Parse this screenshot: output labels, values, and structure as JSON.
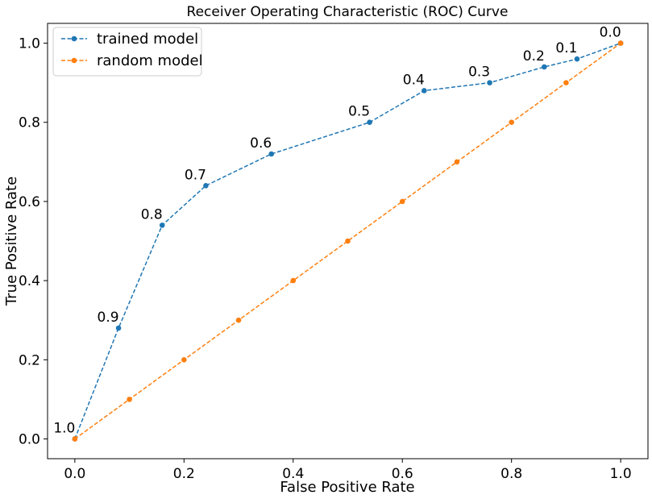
{
  "chart_data": {
    "type": "line",
    "title": "Receiver Operating Characteristic (ROC) Curve",
    "xlabel": "False Positive Rate",
    "ylabel": "True Positive Rate",
    "xlim": [
      -0.05,
      1.05
    ],
    "ylim": [
      -0.05,
      1.05
    ],
    "xticks": [
      0.0,
      0.2,
      0.4,
      0.6,
      0.8,
      1.0
    ],
    "yticks": [
      0.0,
      0.2,
      0.4,
      0.6,
      0.8,
      1.0
    ],
    "xtick_labels": [
      "0.0",
      "0.2",
      "0.4",
      "0.6",
      "0.8",
      "1.0"
    ],
    "ytick_labels": [
      "0.0",
      "0.2",
      "0.4",
      "0.6",
      "0.8",
      "1.0"
    ],
    "grid": false,
    "legend_position": "top-left",
    "series": [
      {
        "name": "trained model",
        "color": "#1f77b4",
        "line_style": "dashed",
        "marker": "circle",
        "x": [
          0.0,
          0.08,
          0.16,
          0.24,
          0.36,
          0.54,
          0.64,
          0.76,
          0.86,
          0.92,
          1.0
        ],
        "y": [
          0.0,
          0.28,
          0.54,
          0.64,
          0.72,
          0.8,
          0.88,
          0.9,
          0.94,
          0.96,
          1.0
        ],
        "point_labels": [
          "1.0",
          "0.9",
          "0.8",
          "0.7",
          "0.6",
          "0.5",
          "0.4",
          "0.3",
          "0.2",
          "0.1",
          "0.0"
        ]
      },
      {
        "name": "random model",
        "color": "#ff7f0e",
        "line_style": "dashed",
        "marker": "circle",
        "x": [
          0.0,
          0.1,
          0.2,
          0.3,
          0.4,
          0.5,
          0.6,
          0.7,
          0.8,
          0.9,
          1.0
        ],
        "y": [
          0.0,
          0.1,
          0.2,
          0.3,
          0.4,
          0.5,
          0.6,
          0.7,
          0.8,
          0.9,
          1.0
        ]
      }
    ]
  }
}
